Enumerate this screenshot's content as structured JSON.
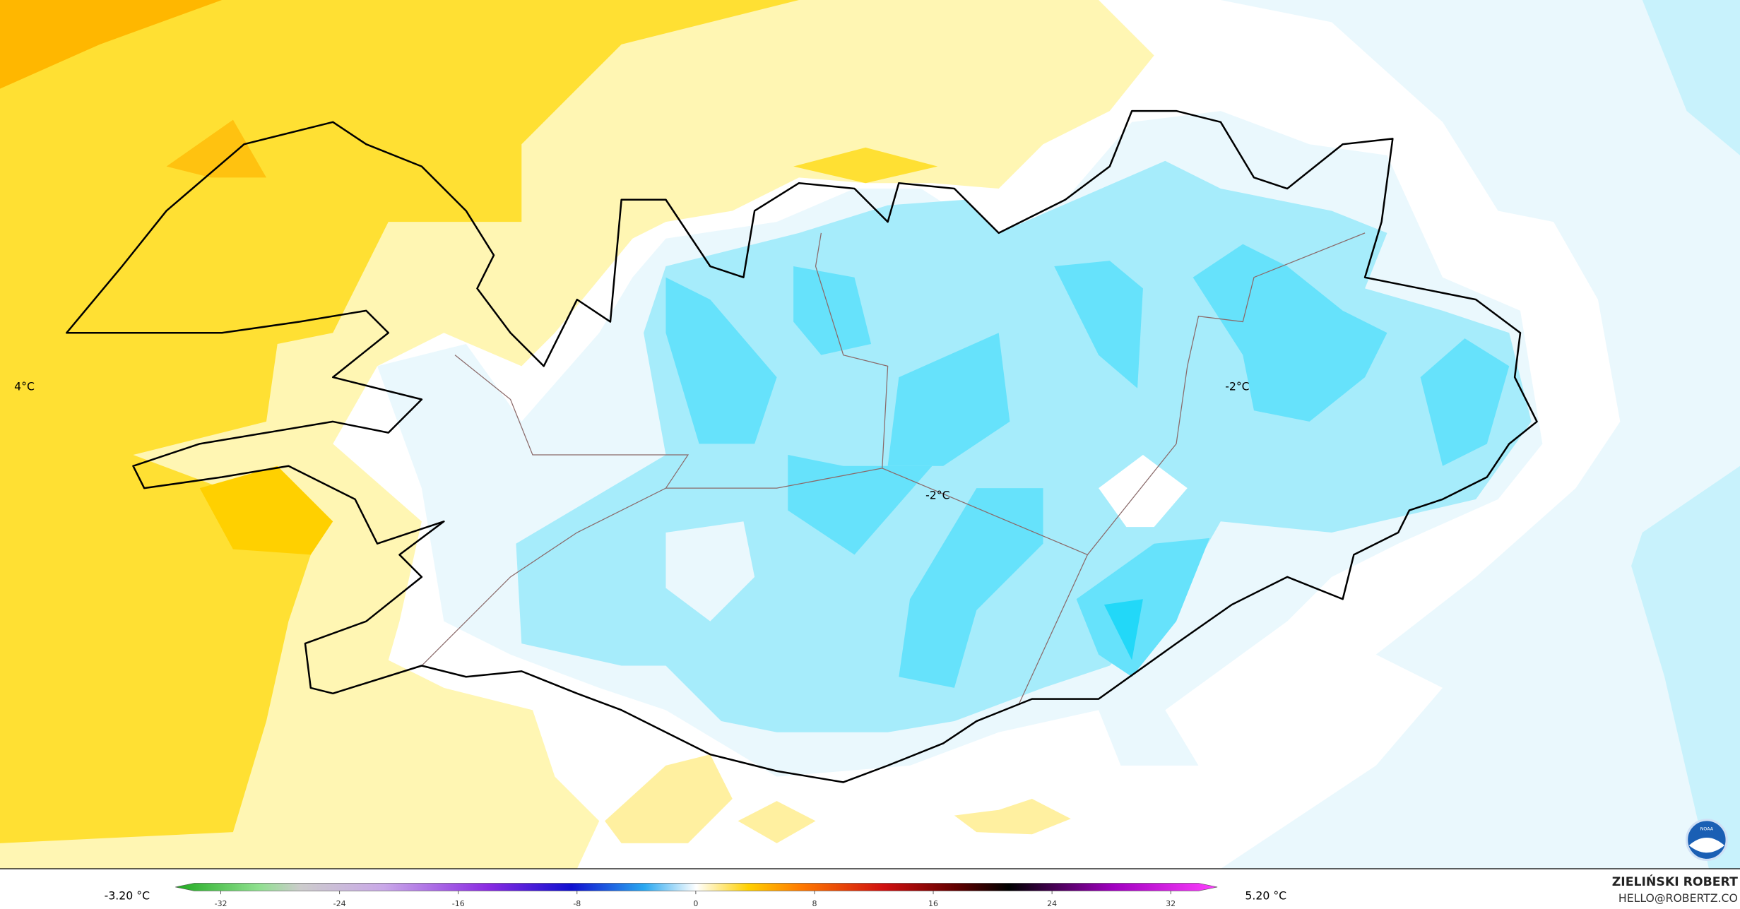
{
  "map": {
    "labels": [
      "4°C",
      "-2°C",
      "-2°C"
    ]
  },
  "colorbar": {
    "min_label": "-3.20 °C",
    "max_label": "5.20 °C",
    "ticks": [
      -32,
      -24,
      -16,
      -8,
      0,
      8,
      16,
      24,
      32
    ]
  },
  "credit": {
    "author": "ZIELIŃSKI ROBERT",
    "email": "HELLO@ROBERTZ.CO"
  },
  "logo": "NOAA"
}
